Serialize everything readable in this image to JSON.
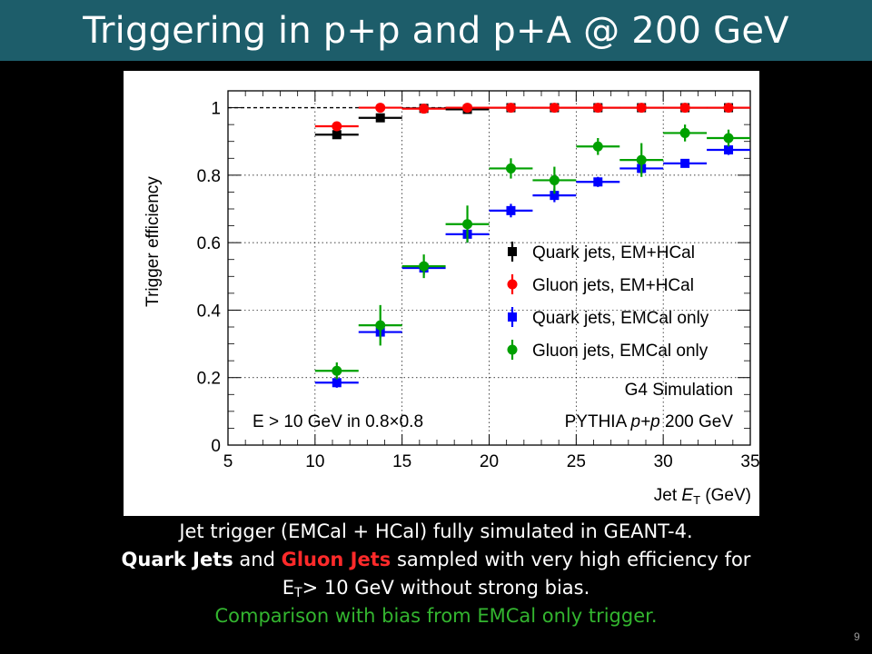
{
  "slide": {
    "title": "Triggering in p+p and p+A @ 200 GeV",
    "number": "9",
    "caption": {
      "line1": "Jet trigger (EMCal + HCal) fully simulated in GEANT-4.",
      "line2_quark": "Quark Jets",
      "line2_and": " and ",
      "line2_gluon": "Gluon Jets",
      "line2_rest": " sampled with very high efficiency for",
      "line3_e": "E",
      "line3_sub": "T",
      "line3_rest": "> 10 GeV without strong bias.",
      "line4": "Comparison with bias from EMCal only trigger."
    },
    "colors": {
      "title_bar": "#1d5d6a",
      "background": "#000000",
      "caption_red": "#ff2a2a",
      "caption_green": "#33b52f"
    }
  },
  "chart_data": {
    "type": "scatter",
    "title": "",
    "ylabel": "Trigger efficiency",
    "xlabel": "Jet E_T (GeV)",
    "xlabel_parts": {
      "pre": "Jet ",
      "var": "E",
      "sub": "T",
      "unit": " (GeV)"
    },
    "xlim": [
      5,
      35
    ],
    "ylim": [
      0,
      1.05
    ],
    "xticks": [
      5,
      10,
      15,
      20,
      25,
      30,
      35
    ],
    "yticks": [
      0,
      0.2,
      0.4,
      0.6,
      0.8,
      1
    ],
    "ytick_labels": [
      "0",
      "0.2",
      "0.4",
      "0.6",
      "0.8",
      "1"
    ],
    "reference_line": 1,
    "legend_position": "right",
    "annotations": {
      "g4": "G4 Simulation",
      "energy_cut": "E > 10 GeV in 0.8×0.8",
      "pythia_pre": "PYTHIA ",
      "pythia_process": "p+p",
      "pythia_post": " 200 GeV"
    },
    "series": [
      {
        "name": "Quark jets, EM+HCal",
        "color": "#000000",
        "marker": "square",
        "x": [
          11.25,
          13.75,
          16.25,
          18.75,
          21.25,
          23.75,
          26.25,
          28.75,
          31.25,
          33.75
        ],
        "y": [
          0.92,
          0.97,
          0.998,
          0.995,
          1.0,
          1.0,
          1.0,
          1.0,
          1.0,
          1.0
        ],
        "yerr": [
          0.012,
          0.01,
          0.006,
          0.006,
          0.004,
          0.004,
          0.004,
          0.004,
          0.004,
          0.004
        ]
      },
      {
        "name": "Gluon jets, EM+HCal",
        "color": "#ff0000",
        "marker": "circle",
        "x": [
          11.25,
          13.75,
          16.25,
          18.75,
          21.25,
          23.75,
          26.25,
          28.75,
          31.25,
          33.75
        ],
        "y": [
          0.945,
          1.0,
          0.997,
          1.0,
          1.0,
          1.0,
          1.0,
          1.0,
          1.0,
          1.0
        ],
        "yerr": [
          0.012,
          0.005,
          0.005,
          0.004,
          0.004,
          0.004,
          0.004,
          0.004,
          0.004,
          0.004
        ]
      },
      {
        "name": "Quark jets, EMCal only",
        "color": "#0000ff",
        "marker": "square",
        "x": [
          11.25,
          13.75,
          16.25,
          18.75,
          21.25,
          23.75,
          26.25,
          28.75,
          31.25,
          33.75
        ],
        "y": [
          0.185,
          0.335,
          0.525,
          0.625,
          0.695,
          0.74,
          0.78,
          0.82,
          0.835,
          0.875
        ],
        "yerr": [
          0.015,
          0.018,
          0.02,
          0.025,
          0.02,
          0.02,
          0.015,
          0.015,
          0.012,
          0.015
        ]
      },
      {
        "name": "Gluon jets, EMCal only",
        "color": "#00a000",
        "marker": "circle",
        "x": [
          11.25,
          13.75,
          16.25,
          18.75,
          21.25,
          23.75,
          26.25,
          28.75,
          31.25,
          33.75
        ],
        "y": [
          0.22,
          0.355,
          0.53,
          0.655,
          0.82,
          0.785,
          0.885,
          0.845,
          0.925,
          0.91
        ],
        "yerr": [
          0.025,
          0.06,
          0.035,
          0.055,
          0.03,
          0.04,
          0.025,
          0.05,
          0.025,
          0.025
        ]
      }
    ]
  }
}
